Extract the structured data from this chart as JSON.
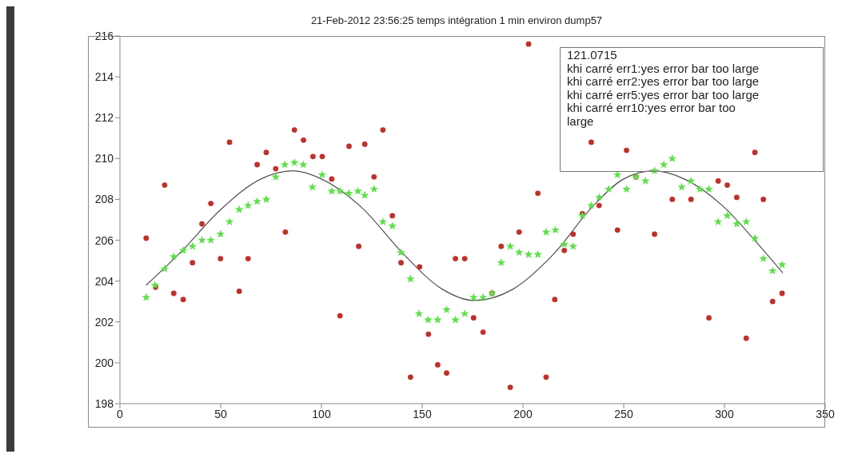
{
  "chart_data": {
    "type": "scatter",
    "title": "21-Feb-2012 23:56:25 temps intégration 1 min environ dump57",
    "annotations": [
      "121.0715",
      "khi carré err1:yes error bar too large",
      "khi carré err2:yes error bar too large",
      "khi carré err5:yes error bar too large",
      "khi carré err10:yes error bar too large"
    ],
    "xlim": [
      0,
      350
    ],
    "xticks": [
      0,
      50,
      100,
      150,
      200,
      250,
      300,
      350
    ],
    "ylim": [
      198,
      216
    ],
    "yticks": [
      198,
      200,
      202,
      204,
      206,
      208,
      210,
      212,
      214,
      216
    ],
    "grid": false,
    "legend": false,
    "series": [
      {
        "type": "scatter",
        "marker": "circle",
        "color": "#c0302a",
        "x": [
          13.0,
          17.7,
          22.2,
          26.7,
          31.4,
          36.0,
          40.7,
          45.1,
          49.9,
          54.4,
          59.2,
          63.6,
          68.1,
          72.6,
          77.3,
          82.1,
          86.6,
          91.1,
          95.8,
          100.4,
          105.1,
          109.2,
          113.7,
          118.5,
          121.5,
          126.1,
          130.5,
          135.2,
          139.5,
          144.2,
          148.7,
          153.1,
          157.7,
          162.1,
          166.5,
          171.1,
          175.5,
          180.2,
          184.7,
          189.2,
          193.7,
          198.1,
          202.8,
          207.4,
          211.5,
          215.8,
          220.5,
          224.9,
          229.5,
          233.9,
          237.8,
          246.9,
          251.4,
          256.1,
          265.3,
          274.1,
          283.4,
          292.3,
          296.9,
          301.4,
          306.1,
          310.8,
          315.1,
          319.3,
          323.9,
          328.6
        ],
        "values": [
          206.1,
          203.7,
          208.7,
          203.4,
          203.1,
          204.9,
          206.8,
          207.8,
          205.1,
          210.8,
          203.5,
          205.1,
          209.7,
          210.3,
          209.5,
          206.4,
          211.4,
          210.9,
          210.1,
          210.1,
          209.0,
          202.3,
          210.6,
          205.7,
          210.7,
          209.1,
          211.4,
          207.2,
          204.9,
          199.3,
          204.7,
          201.4,
          199.9,
          199.5,
          205.1,
          205.1,
          202.2,
          201.5,
          203.4,
          205.7,
          198.8,
          206.4,
          215.6,
          208.3,
          199.3,
          203.1,
          205.5,
          206.3,
          207.3,
          210.8,
          207.7,
          206.5,
          210.4,
          209.1,
          206.3,
          208.0,
          208.0,
          202.2,
          208.9,
          208.7,
          208.1,
          201.2,
          210.3,
          208.0,
          203.0,
          203.4
        ]
      },
      {
        "type": "scatter",
        "marker": "star",
        "color": "#5ee04a",
        "x": [
          13.0,
          17.4,
          22.2,
          26.7,
          31.4,
          36.0,
          40.7,
          45.1,
          49.9,
          54.4,
          59.2,
          63.6,
          68.1,
          72.6,
          77.3,
          81.8,
          86.6,
          91.0,
          95.5,
          100.3,
          105.1,
          109.2,
          113.6,
          118.1,
          121.5,
          126.1,
          130.5,
          135.2,
          139.5,
          144.2,
          148.4,
          153.0,
          157.7,
          162.1,
          166.5,
          171.1,
          175.5,
          180.2,
          184.7,
          189.2,
          193.7,
          198.1,
          202.8,
          207.4,
          211.5,
          216.1,
          220.5,
          224.9,
          229.5,
          233.9,
          237.8,
          242.6,
          246.9,
          251.4,
          256.1,
          260.8,
          265.3,
          269.9,
          274.1,
          278.8,
          283.4,
          287.8,
          292.3,
          296.9,
          301.4,
          306.1,
          310.8,
          315.1,
          319.3,
          323.9,
          328.6
        ],
        "values": [
          203.2,
          203.8,
          204.6,
          205.2,
          205.5,
          205.7,
          206.0,
          206.0,
          206.3,
          206.9,
          207.5,
          207.7,
          207.9,
          208.0,
          209.1,
          209.7,
          209.8,
          209.7,
          208.6,
          209.2,
          208.4,
          208.4,
          208.3,
          208.4,
          208.2,
          208.5,
          206.9,
          206.7,
          205.4,
          204.1,
          202.4,
          202.1,
          202.1,
          202.6,
          202.1,
          202.4,
          203.2,
          203.2,
          203.4,
          204.9,
          205.7,
          205.4,
          205.3,
          205.3,
          206.4,
          206.5,
          205.8,
          205.7,
          207.2,
          207.7,
          208.1,
          208.5,
          209.2,
          208.5,
          209.1,
          208.9,
          209.4,
          209.7,
          210.0,
          208.6,
          208.9,
          208.5,
          208.5,
          206.9,
          207.2,
          206.8,
          206.9,
          206.1,
          205.1,
          204.5,
          204.8
        ]
      },
      {
        "type": "line",
        "marker": "none",
        "line_style": "solid",
        "color": "#505050",
        "x": [
          13,
          30,
          50,
          70,
          86,
          100,
          120,
          140,
          160,
          176,
          195,
          215,
          235,
          250,
          265,
          280,
          300,
          315,
          329
        ],
        "values": [
          203.8,
          205.4,
          207.5,
          209.0,
          209.4,
          209.0,
          207.6,
          205.4,
          203.6,
          203.05,
          203.6,
          205.3,
          207.7,
          209.0,
          209.4,
          209.0,
          207.6,
          206.0,
          204.4
        ]
      }
    ]
  }
}
